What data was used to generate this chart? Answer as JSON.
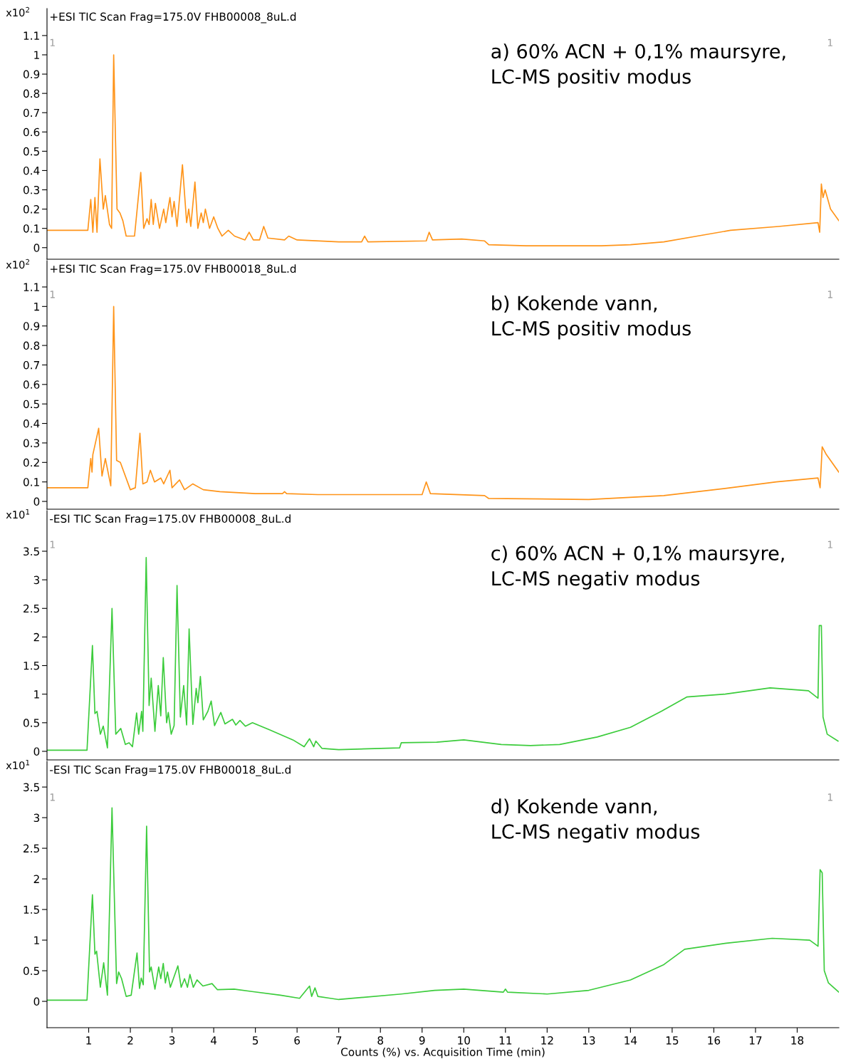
{
  "chart_data": [
    {
      "type": "line",
      "title": "a) 60% ACN + 0,1% maursyre,\nLC-MS positiv modus",
      "subtitle": "+ESI TIC Scan Frag=175.0V FHB00008_8uL.d",
      "ylabel": "x10$^{2}$",
      "annotations": [
        "1",
        "1"
      ],
      "x": [
        0,
        0.5,
        0.98,
        1.05,
        1.1,
        1.15,
        1.2,
        1.27,
        1.35,
        1.4,
        1.5,
        1.55,
        1.6,
        1.68,
        1.75,
        1.82,
        1.9,
        2.1,
        2.25,
        2.32,
        2.4,
        2.45,
        2.5,
        2.55,
        2.6,
        2.7,
        2.8,
        2.85,
        2.95,
        3.0,
        3.05,
        3.12,
        3.25,
        3.35,
        3.4,
        3.45,
        3.55,
        3.62,
        3.7,
        3.75,
        3.8,
        3.9,
        4.0,
        4.1,
        4.2,
        4.35,
        4.5,
        4.75,
        4.85,
        4.95,
        5.1,
        5.2,
        5.3,
        5.7,
        5.8,
        6.0,
        7.0,
        7.55,
        7.62,
        7.7,
        9.1,
        9.17,
        9.25,
        9.95,
        10.5,
        10.6,
        11.5,
        12.5,
        13.3,
        14.0,
        14.8,
        15.6,
        16.4,
        17.55,
        18.5,
        18.54,
        18.58,
        18.62,
        18.67,
        18.8,
        19.0
      ],
      "series": [
        {
          "color": "#ff9419",
          "values": [
            0.09,
            0.09,
            0.09,
            0.25,
            0.08,
            0.26,
            0.08,
            0.46,
            0.2,
            0.27,
            0.12,
            0.1,
            1.0,
            0.2,
            0.18,
            0.14,
            0.06,
            0.06,
            0.39,
            0.1,
            0.15,
            0.12,
            0.25,
            0.12,
            0.23,
            0.1,
            0.2,
            0.13,
            0.26,
            0.16,
            0.24,
            0.11,
            0.43,
            0.13,
            0.2,
            0.11,
            0.34,
            0.1,
            0.18,
            0.13,
            0.2,
            0.1,
            0.16,
            0.1,
            0.06,
            0.09,
            0.06,
            0.04,
            0.08,
            0.04,
            0.04,
            0.11,
            0.05,
            0.04,
            0.06,
            0.04,
            0.03,
            0.03,
            0.06,
            0.03,
            0.035,
            0.08,
            0.04,
            0.045,
            0.035,
            0.015,
            0.01,
            0.01,
            0.01,
            0.015,
            0.03,
            0.06,
            0.09,
            0.11,
            0.13,
            0.08,
            0.33,
            0.26,
            0.3,
            0.2,
            0.14
          ]
        }
      ],
      "xlim": [
        0,
        19
      ],
      "ylim": [
        -0.06,
        1.24
      ],
      "yticks": [
        0,
        0.1,
        0.2,
        0.3,
        0.4,
        0.5,
        0.6,
        0.7,
        0.8,
        0.9,
        1,
        1.1
      ],
      "tick_labels": "y"
    },
    {
      "type": "line",
      "title": "b) Kokende vann,\nLC-MS positiv modus",
      "subtitle": "+ESI TIC Scan Frag=175.0V FHB00018_8uL.d",
      "ylabel": "x10$^{2}$",
      "annotations": [
        "1",
        "1"
      ],
      "x": [
        0,
        0.5,
        0.98,
        1.05,
        1.08,
        1.1,
        1.24,
        1.32,
        1.4,
        1.53,
        1.6,
        1.67,
        1.76,
        2.0,
        2.12,
        2.23,
        2.3,
        2.4,
        2.48,
        2.58,
        2.73,
        2.8,
        2.95,
        3.0,
        3.18,
        3.3,
        3.5,
        3.75,
        4.15,
        5.0,
        5.65,
        5.7,
        5.75,
        6.5,
        9.0,
        9.1,
        9.2,
        10.5,
        10.6,
        13.0,
        14.8,
        16.4,
        17.5,
        18.5,
        18.55,
        18.6,
        18.7,
        19.0
      ],
      "series": [
        {
          "color": "#ff9419",
          "values": [
            0.07,
            0.07,
            0.07,
            0.22,
            0.15,
            0.24,
            0.375,
            0.13,
            0.22,
            0.08,
            1.0,
            0.21,
            0.2,
            0.06,
            0.07,
            0.35,
            0.09,
            0.1,
            0.16,
            0.1,
            0.12,
            0.09,
            0.16,
            0.07,
            0.11,
            0.06,
            0.09,
            0.06,
            0.05,
            0.04,
            0.04,
            0.05,
            0.04,
            0.035,
            0.035,
            0.1,
            0.04,
            0.03,
            0.015,
            0.01,
            0.03,
            0.07,
            0.1,
            0.12,
            0.07,
            0.28,
            0.24,
            0.15
          ]
        }
      ],
      "xlim": [
        0,
        19
      ],
      "ylim": [
        -0.04,
        1.235
      ],
      "yticks": [
        0,
        0.1,
        0.2,
        0.3,
        0.4,
        0.5,
        0.6,
        0.7,
        0.8,
        0.9,
        1,
        1.1
      ],
      "tick_labels": "y"
    },
    {
      "type": "line",
      "title": "c) 60% ACN + 0,1% maursyre,\nLC-MS negativ modus",
      "subtitle": "-ESI TIC Scan Frag=175.0V FHB00008_8uL.d",
      "ylabel": "x10$^{1}$",
      "annotations": [
        "1",
        "1"
      ],
      "x": [
        0,
        0.5,
        0.96,
        1.09,
        1.15,
        1.2,
        1.28,
        1.35,
        1.45,
        1.56,
        1.65,
        1.77,
        1.88,
        1.97,
        2.05,
        2.15,
        2.2,
        2.27,
        2.3,
        2.38,
        2.45,
        2.5,
        2.59,
        2.67,
        2.73,
        2.79,
        2.87,
        2.91,
        2.98,
        3.05,
        3.12,
        3.2,
        3.28,
        3.35,
        3.41,
        3.5,
        3.58,
        3.62,
        3.68,
        3.75,
        3.86,
        3.94,
        4.02,
        4.17,
        4.27,
        4.45,
        4.53,
        4.63,
        4.76,
        4.93,
        5.33,
        5.9,
        6.17,
        6.3,
        6.4,
        6.45,
        6.6,
        7.0,
        8.46,
        8.5,
        9.35,
        10.0,
        10.9,
        11.6,
        12.3,
        13.2,
        14.0,
        14.74,
        15.35,
        16.27,
        17.35,
        18.27,
        18.5,
        18.53,
        18.58,
        18.62,
        18.72,
        18.98
      ],
      "series": [
        {
          "color": "#3ccc3c",
          "values": [
            0.02,
            0.02,
            0.02,
            1.85,
            0.66,
            0.7,
            0.3,
            0.44,
            0.06,
            2.5,
            0.3,
            0.4,
            0.12,
            0.15,
            0.08,
            0.67,
            0.3,
            0.7,
            0.35,
            3.39,
            0.8,
            1.28,
            0.35,
            1.15,
            0.62,
            1.64,
            0.5,
            0.68,
            0.3,
            0.45,
            2.9,
            0.6,
            1.15,
            0.46,
            2.14,
            0.47,
            1.1,
            0.85,
            1.31,
            0.55,
            0.7,
            0.88,
            0.45,
            0.68,
            0.48,
            0.56,
            0.46,
            0.54,
            0.44,
            0.5,
            0.38,
            0.2,
            0.08,
            0.22,
            0.08,
            0.18,
            0.05,
            0.03,
            0.06,
            0.15,
            0.16,
            0.2,
            0.12,
            0.1,
            0.12,
            0.25,
            0.42,
            0.7,
            0.95,
            1.0,
            1.11,
            1.06,
            0.93,
            2.2,
            2.2,
            0.6,
            0.3,
            0.18
          ]
        }
      ],
      "xlim": [
        0,
        19
      ],
      "ylim": [
        -0.15,
        4.21
      ],
      "yticks": [
        0,
        0.5,
        1,
        1.5,
        2,
        2.5,
        3,
        3.5
      ],
      "tick_labels": "y"
    },
    {
      "type": "line",
      "title": "d) Kokende vann,\nLC-MS negativ modus",
      "subtitle": "-ESI TIC Scan Frag=175.0V FHB00018_8uL.d",
      "ylabel": "x10$^{1}$",
      "xlabel": "Counts (%) vs. Acquisition Time (min)",
      "annotations": [
        "1",
        "1"
      ],
      "x": [
        0,
        0.5,
        0.96,
        1.09,
        1.15,
        1.19,
        1.28,
        1.36,
        1.45,
        1.56,
        1.67,
        1.72,
        1.79,
        1.9,
        2.02,
        2.16,
        2.22,
        2.26,
        2.31,
        2.39,
        2.46,
        2.5,
        2.59,
        2.68,
        2.73,
        2.79,
        2.84,
        2.89,
        2.96,
        3.14,
        3.22,
        3.3,
        3.37,
        3.43,
        3.51,
        3.6,
        3.74,
        3.96,
        4.09,
        4.49,
        4.92,
        5.6,
        6.06,
        6.3,
        6.35,
        6.43,
        6.5,
        6.8,
        7.0,
        8.5,
        9.3,
        10.0,
        10.95,
        11.0,
        11.05,
        12.0,
        13.0,
        14.0,
        14.8,
        15.3,
        16.3,
        17.4,
        18.3,
        18.5,
        18.55,
        18.6,
        18.65,
        18.75,
        19.0
      ],
      "series": [
        {
          "color": "#3ccc3c",
          "values": [
            0.02,
            0.02,
            0.02,
            1.74,
            0.77,
            0.82,
            0.23,
            0.63,
            0.1,
            3.16,
            0.29,
            0.48,
            0.37,
            0.08,
            0.1,
            0.79,
            0.21,
            0.38,
            0.27,
            2.86,
            0.48,
            0.56,
            0.2,
            0.56,
            0.37,
            0.62,
            0.3,
            0.48,
            0.23,
            0.58,
            0.23,
            0.37,
            0.23,
            0.44,
            0.23,
            0.35,
            0.25,
            0.29,
            0.19,
            0.2,
            0.16,
            0.1,
            0.05,
            0.25,
            0.08,
            0.22,
            0.08,
            0.05,
            0.03,
            0.12,
            0.18,
            0.2,
            0.15,
            0.2,
            0.15,
            0.12,
            0.18,
            0.35,
            0.6,
            0.85,
            0.95,
            1.03,
            1.0,
            0.9,
            2.15,
            2.1,
            0.5,
            0.3,
            0.15
          ]
        }
      ],
      "xlim": [
        0,
        19
      ],
      "ylim": [
        -0.43,
        3.92
      ],
      "xticks": [
        1,
        2,
        3,
        4,
        5,
        6,
        7,
        8,
        9,
        10,
        11,
        12,
        13,
        14,
        15,
        16,
        17,
        18
      ],
      "yticks": [
        0,
        0.5,
        1,
        1.5,
        2,
        2.5,
        3,
        3.5
      ]
    }
  ]
}
